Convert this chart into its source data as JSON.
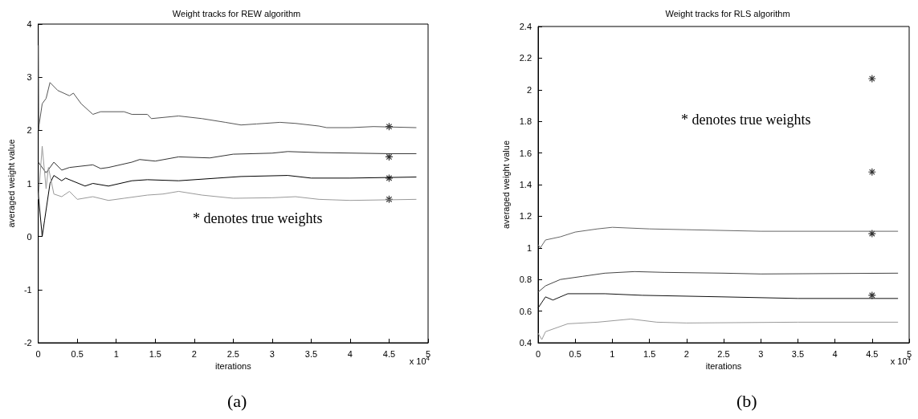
{
  "chart_data": [
    {
      "type": "line",
      "title": "Weight tracks for REW algorithm",
      "xlabel": "iterations",
      "ylabel": "averaged weight value",
      "xlim": [
        0,
        5
      ],
      "xticks": [
        0,
        0.5,
        1,
        1.5,
        2,
        2.5,
        3,
        3.5,
        4,
        4.5,
        5
      ],
      "ylim": [
        -2,
        4
      ],
      "yticks": [
        -2,
        -1,
        0,
        1,
        2,
        3,
        4
      ],
      "grid": false,
      "marker": "none",
      "line_style": "solid",
      "annotations": [
        "* denotes true weights",
        "x 10$^{4}$",
        "(a)"
      ],
      "series": [
        {
          "color": "#555555",
          "x": [
            0,
            0.005,
            0.01,
            0.05,
            0.1,
            0.15,
            0.25,
            0.4,
            0.45,
            0.55,
            0.7,
            0.8,
            1.1,
            1.2,
            1.4,
            1.45,
            1.8,
            2.1,
            2.4,
            2.6,
            2.8,
            3.1,
            3.3,
            3.6,
            3.7,
            4.0,
            4.3,
            4.85
          ],
          "values": [
            3.6,
            2.0,
            2.1,
            2.5,
            2.6,
            2.9,
            2.75,
            2.65,
            2.7,
            2.5,
            2.3,
            2.35,
            2.35,
            2.3,
            2.3,
            2.22,
            2.27,
            2.22,
            2.15,
            2.1,
            2.12,
            2.15,
            2.13,
            2.08,
            2.05,
            2.05,
            2.07,
            2.05
          ]
        },
        {
          "color": "#333333",
          "x": [
            0,
            0.1,
            0.2,
            0.3,
            0.4,
            0.7,
            0.8,
            0.9,
            1.2,
            1.3,
            1.5,
            1.8,
            2.2,
            2.5,
            3.0,
            3.2,
            3.6,
            4.5,
            4.85
          ],
          "values": [
            1.4,
            1.2,
            1.4,
            1.25,
            1.3,
            1.35,
            1.28,
            1.3,
            1.4,
            1.45,
            1.42,
            1.5,
            1.48,
            1.55,
            1.57,
            1.6,
            1.58,
            1.56,
            1.56
          ]
        },
        {
          "color": "#000000",
          "x": [
            0,
            0.05,
            0.08,
            0.15,
            0.2,
            0.3,
            0.35,
            0.6,
            0.7,
            0.9,
            1.2,
            1.4,
            1.8,
            2.3,
            2.6,
            3.2,
            3.5,
            4.0,
            4.85
          ],
          "values": [
            0.8,
            0,
            0.3,
            1.0,
            1.15,
            1.05,
            1.1,
            0.95,
            1.0,
            0.95,
            1.05,
            1.07,
            1.05,
            1.1,
            1.13,
            1.15,
            1.1,
            1.1,
            1.12
          ]
        },
        {
          "color": "#999999",
          "x": [
            0,
            0.05,
            0.1,
            0.13,
            0.2,
            0.3,
            0.4,
            0.5,
            0.7,
            0.9,
            1.1,
            1.4,
            1.6,
            1.8,
            2.1,
            2.5,
            3.0,
            3.3,
            3.6,
            4.0,
            4.85
          ],
          "values": [
            0.7,
            1.7,
            0.9,
            1.3,
            0.8,
            0.75,
            0.85,
            0.7,
            0.75,
            0.68,
            0.72,
            0.78,
            0.8,
            0.85,
            0.78,
            0.72,
            0.73,
            0.75,
            0.7,
            0.68,
            0.7
          ]
        },
        {
          "type": "scatter",
          "marker": "cross",
          "color": "#000000",
          "x": [
            4.5,
            4.5,
            4.5,
            4.5
          ],
          "values": [
            2.07,
            1.5,
            1.1,
            0.7
          ]
        }
      ]
    },
    {
      "type": "line",
      "title": "Weight tracks for RLS algorithm",
      "xlabel": "iterations",
      "ylabel": "averaged weight value",
      "xlim": [
        0,
        5
      ],
      "xticks": [
        0,
        0.5,
        1,
        1.5,
        2,
        2.5,
        3,
        3.5,
        4,
        4.5,
        5
      ],
      "ylim": [
        0.4,
        2.4
      ],
      "yticks": [
        0.4,
        0.6,
        0.8,
        1,
        1.2,
        1.4,
        1.6,
        1.8,
        2,
        2.2,
        2.4
      ],
      "grid": false,
      "marker": "none",
      "line_style": "solid",
      "annotations": [
        "* denotes true weights",
        "x 10$^{4}$",
        "(b)"
      ],
      "series": [
        {
          "color": "#666666",
          "x": [
            0,
            0.03,
            0.1,
            0.3,
            0.5,
            0.8,
            1.0,
            1.5,
            2.0,
            2.5,
            3.0,
            4.85
          ],
          "values": [
            1.02,
            1.0,
            1.05,
            1.07,
            1.1,
            1.12,
            1.13,
            1.12,
            1.115,
            1.11,
            1.105,
            1.105
          ]
        },
        {
          "color": "#444444",
          "x": [
            0,
            0.1,
            0.3,
            0.6,
            0.9,
            1.3,
            1.7,
            2.5,
            3.0,
            4.85
          ],
          "values": [
            0.72,
            0.76,
            0.8,
            0.82,
            0.84,
            0.85,
            0.845,
            0.84,
            0.835,
            0.84
          ]
        },
        {
          "color": "#111111",
          "x": [
            0,
            0.1,
            0.2,
            0.4,
            0.9,
            1.4,
            2.5,
            3.5,
            4.85
          ],
          "values": [
            0.62,
            0.69,
            0.67,
            0.71,
            0.71,
            0.7,
            0.69,
            0.68,
            0.68
          ]
        },
        {
          "color": "#999999",
          "x": [
            0,
            0.05,
            0.1,
            0.4,
            0.8,
            1.25,
            1.6,
            2.0,
            3.5,
            4.85
          ],
          "values": [
            0.46,
            0.42,
            0.47,
            0.52,
            0.53,
            0.55,
            0.53,
            0.525,
            0.53,
            0.53
          ]
        },
        {
          "type": "scatter",
          "marker": "cross",
          "color": "#000000",
          "x": [
            4.5,
            4.5,
            4.5,
            4.5
          ],
          "values": [
            2.07,
            1.48,
            1.09,
            0.7
          ]
        }
      ]
    }
  ]
}
